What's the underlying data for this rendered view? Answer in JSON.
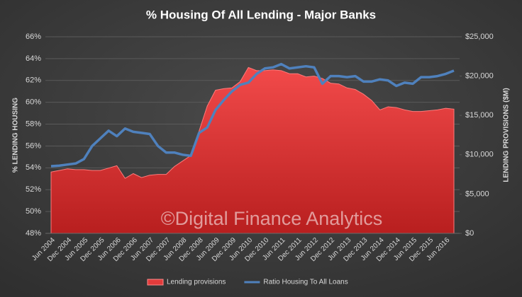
{
  "chart_data": {
    "type": "combo",
    "title": "% Housing Of All Lending - Major Banks",
    "ylabel": "% LENDING HOUSING",
    "y2label": "LENDING PROVISIONS ($M)",
    "annotation": "©Digital Finance Analytics",
    "categories": [
      "Jun 2004",
      null,
      "Dec 2004",
      null,
      "Jun 2005",
      null,
      "Dec 2005",
      null,
      "Jun 2006",
      null,
      "Dec 2006",
      null,
      "Jun 2007",
      null,
      "Dec 2007",
      null,
      "Jun 2008",
      null,
      "Dec 2008",
      null,
      "Jun 2009",
      null,
      "Dec 2009",
      null,
      "Jun 2010",
      null,
      "Dec 2010",
      null,
      "Jun 2011",
      null,
      "Dec 2011",
      null,
      "Jun 2012",
      null,
      "Dec 2012",
      null,
      "Jun 2013",
      null,
      "Dec 2013",
      null,
      "Jun 2014",
      null,
      "Dec 2014",
      null,
      "Jun 2015",
      null,
      "Dec 2015",
      null,
      "Jun 2016",
      null
    ],
    "series": [
      {
        "name": "Lending provisions",
        "type": "area",
        "axis": "y2",
        "color": "#e23b3b",
        "values": [
          7800,
          8000,
          8200,
          8100,
          8100,
          8000,
          8000,
          8300,
          8600,
          7000,
          7600,
          7100,
          7400,
          7500,
          7500,
          8500,
          9200,
          9900,
          13000,
          16200,
          18200,
          18400,
          18500,
          19300,
          21100,
          20700,
          20700,
          20800,
          20700,
          20300,
          20300,
          19900,
          20000,
          19700,
          19100,
          19000,
          18500,
          18300,
          17700,
          16900,
          15700,
          16100,
          16000,
          15700,
          15500,
          15500,
          15600,
          15700,
          15900,
          15800
        ]
      },
      {
        "name": "Ratio Housing To All Loans",
        "type": "line",
        "axis": "y",
        "color": "#4f81bd",
        "values": [
          54.15,
          54.2,
          54.3,
          54.4,
          54.8,
          56.0,
          56.7,
          57.4,
          56.9,
          57.6,
          57.3,
          57.2,
          57.1,
          56.0,
          55.4,
          55.4,
          55.2,
          55.1,
          57.2,
          57.7,
          59.3,
          60.2,
          61.0,
          61.6,
          61.8,
          62.6,
          63.1,
          63.2,
          63.5,
          63.1,
          63.2,
          63.3,
          63.2,
          61.7,
          62.4,
          62.4,
          62.3,
          62.4,
          61.9,
          61.9,
          62.1,
          62.0,
          61.5,
          61.8,
          61.7,
          62.3,
          62.3,
          62.4,
          62.6,
          62.9
        ]
      }
    ],
    "ylim": [
      48,
      66
    ],
    "yticks": [
      {
        "value": 48,
        "label": "48%"
      },
      {
        "value": 50,
        "label": "50%"
      },
      {
        "value": 52,
        "label": "52%"
      },
      {
        "value": 54,
        "label": "54%"
      },
      {
        "value": 56,
        "label": "56%"
      },
      {
        "value": 58,
        "label": "58%"
      },
      {
        "value": 60,
        "label": "60%"
      },
      {
        "value": 62,
        "label": "62%"
      },
      {
        "value": 64,
        "label": "64%"
      },
      {
        "value": 66,
        "label": "66%"
      }
    ],
    "y2lim": [
      0,
      25000
    ],
    "y2ticks": [
      {
        "value": 0,
        "label": "$0"
      },
      {
        "value": 5000,
        "label": "$5,000"
      },
      {
        "value": 10000,
        "label": "$10,000"
      },
      {
        "value": 15000,
        "label": "$15,000"
      },
      {
        "value": 20000,
        "label": "$20,000"
      },
      {
        "value": 25000,
        "label": "$25,000"
      }
    ],
    "grid": true,
    "legend": "bottom"
  }
}
